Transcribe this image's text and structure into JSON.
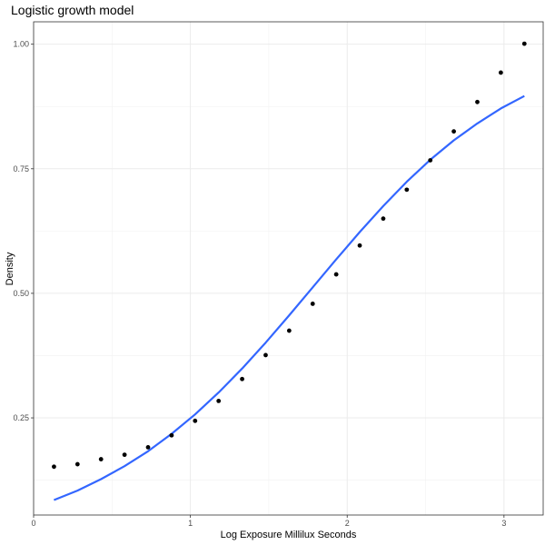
{
  "chart_data": {
    "type": "scatter",
    "title": "Logistic growth model",
    "xlabel": "Log Exposure Millilux Seconds",
    "ylabel": "Density",
    "xlim": [
      0,
      3.25
    ],
    "ylim": [
      0.055,
      1.045
    ],
    "x_ticks": [
      0,
      1,
      2,
      3
    ],
    "x_tick_labels": [
      "0",
      "1",
      "2",
      "3"
    ],
    "y_ticks": [
      0.25,
      0.5,
      0.75,
      1.0
    ],
    "y_tick_labels": [
      "0.25",
      "0.50",
      "0.75",
      "1.00"
    ],
    "grid": true,
    "series": [
      {
        "kind": "points",
        "color": "#000000",
        "x": [
          0.13,
          0.28,
          0.43,
          0.58,
          0.73,
          0.88,
          1.03,
          1.18,
          1.33,
          1.48,
          1.63,
          1.78,
          1.93,
          2.08,
          2.23,
          2.38,
          2.53,
          2.68,
          2.83,
          2.98,
          3.13
        ],
        "y": [
          0.152,
          0.157,
          0.167,
          0.176,
          0.191,
          0.215,
          0.244,
          0.284,
          0.328,
          0.376,
          0.425,
          0.479,
          0.538,
          0.596,
          0.65,
          0.708,
          0.767,
          0.825,
          0.884,
          0.943,
          1.001
        ]
      },
      {
        "kind": "fitted-line",
        "color": "#3366ff",
        "x": [
          0.13,
          0.28,
          0.43,
          0.58,
          0.73,
          0.88,
          1.03,
          1.18,
          1.33,
          1.48,
          1.63,
          1.78,
          1.93,
          2.08,
          2.23,
          2.38,
          2.53,
          2.68,
          2.83,
          2.98,
          3.13
        ],
        "y": [
          0.085,
          0.104,
          0.127,
          0.153,
          0.183,
          0.218,
          0.257,
          0.301,
          0.349,
          0.401,
          0.456,
          0.512,
          0.568,
          0.623,
          0.675,
          0.724,
          0.768,
          0.807,
          0.841,
          0.871,
          0.896
        ]
      }
    ]
  }
}
